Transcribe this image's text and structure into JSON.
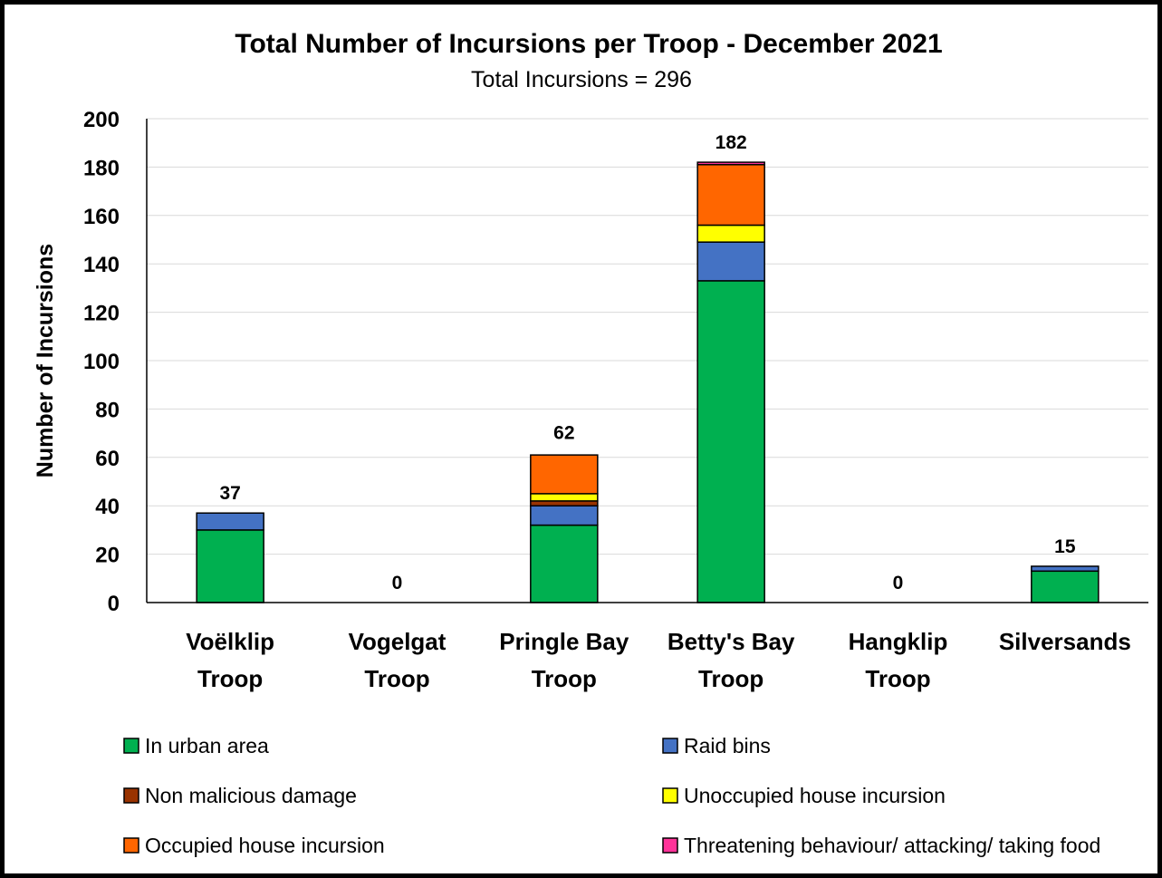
{
  "chart_data": {
    "type": "bar",
    "stacked": true,
    "title": "Total Number of Incursions per Troop - December 2021",
    "subtitle": "Total Incursions = 296",
    "ylabel": "Number of Incursions",
    "xlabel": "",
    "ylim": [
      0,
      200
    ],
    "yticks": [
      0,
      20,
      40,
      60,
      80,
      100,
      120,
      140,
      160,
      180,
      200
    ],
    "grid": true,
    "legend_position": "bottom",
    "categories": [
      [
        "Voëlklip",
        "Troop"
      ],
      [
        "Vogelgat",
        "Troop"
      ],
      [
        "Pringle Bay",
        "Troop"
      ],
      [
        "Betty's Bay",
        "Troop"
      ],
      [
        "Hangklip",
        "Troop"
      ],
      [
        "Silversands"
      ]
    ],
    "totals": [
      37,
      0,
      62,
      182,
      0,
      15
    ],
    "series": [
      {
        "name": "In urban area",
        "color": "#00b050",
        "values": [
          30,
          0,
          32,
          133,
          0,
          13
        ]
      },
      {
        "name": "Raid bins",
        "color": "#4472c4",
        "values": [
          7,
          0,
          8,
          16,
          0,
          2
        ]
      },
      {
        "name": "Non malicious damage",
        "color": "#993300",
        "values": [
          0,
          0,
          2,
          0,
          0,
          0
        ]
      },
      {
        "name": "Unoccupied house incursion",
        "color": "#ffff00",
        "values": [
          0,
          0,
          3,
          7,
          0,
          0
        ]
      },
      {
        "name": "Occupied house incursion",
        "color": "#ff6600",
        "values": [
          0,
          0,
          16,
          25,
          0,
          0
        ]
      },
      {
        "name": "Threatening behaviour/ attacking/ taking food",
        "color": "#ff3399",
        "values": [
          0,
          0,
          0,
          1,
          0,
          0
        ]
      }
    ]
  }
}
